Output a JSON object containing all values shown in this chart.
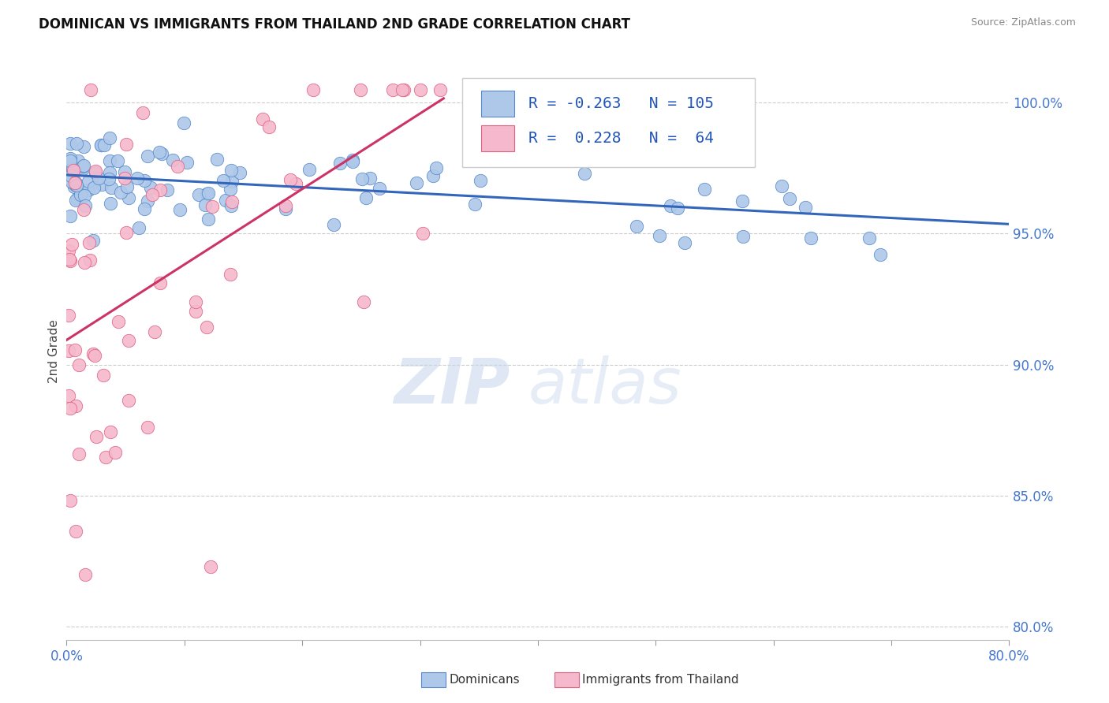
{
  "title": "DOMINICAN VS IMMIGRANTS FROM THAILAND 2ND GRADE CORRELATION CHART",
  "source": "Source: ZipAtlas.com",
  "ylabel": "2nd Grade",
  "xlim": [
    0.0,
    80.0
  ],
  "ylim": [
    79.5,
    101.5
  ],
  "ytick_values": [
    80.0,
    85.0,
    90.0,
    95.0,
    100.0
  ],
  "blue_R": -0.263,
  "blue_N": 105,
  "pink_R": 0.228,
  "pink_N": 64,
  "blue_color": "#adc8e8",
  "blue_edge_color": "#5588cc",
  "blue_line_color": "#3366bb",
  "pink_color": "#f5b8cc",
  "pink_edge_color": "#e06080",
  "pink_line_color": "#cc3366",
  "watermark_zip": "ZIP",
  "watermark_atlas": "atlas",
  "legend_blue_label": "Dominicans",
  "legend_pink_label": "Immigrants from Thailand",
  "blue_seed": 42,
  "pink_seed": 99
}
